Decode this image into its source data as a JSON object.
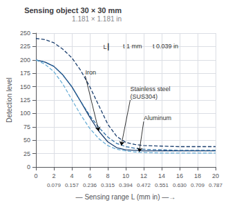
{
  "chart_data": {
    "type": "line",
    "title": "Sensing object 30 × 30 mm",
    "subtitle": "1.181 × 1.181 in",
    "xlabel": "— Sensing range L (mm in) —→",
    "ylabel": "Detection level",
    "x": [
      0,
      1,
      2,
      3,
      4,
      5,
      6,
      7,
      8,
      9,
      10,
      11,
      12,
      14,
      16,
      18,
      20
    ],
    "xlim": [
      0,
      20
    ],
    "xticks": [
      0,
      2,
      4,
      6,
      8,
      10,
      12,
      14,
      16,
      18,
      20
    ],
    "x2lim": [
      0,
      20
    ],
    "x2ticks": [
      {
        "value": 2,
        "label": "0.079"
      },
      {
        "value": 4,
        "label": "0.157"
      },
      {
        "value": 6,
        "label": "0.236"
      },
      {
        "value": 8,
        "label": "0.315"
      },
      {
        "value": 10,
        "label": "0.394"
      },
      {
        "value": 12,
        "label": "0.472"
      },
      {
        "value": 14,
        "label": "0.551"
      },
      {
        "value": 16,
        "label": "0.630"
      },
      {
        "value": 18,
        "label": "0.709"
      },
      {
        "value": 20,
        "label": "0.787"
      }
    ],
    "ylim": [
      0,
      250
    ],
    "yticks": [
      0,
      25,
      50,
      75,
      100,
      125,
      150,
      175,
      200,
      225,
      250
    ],
    "grid": true,
    "series": [
      {
        "color": "#1a3e6e",
        "line_style": "solid",
        "values": [
          200,
          196,
          188,
          172,
          150,
          122,
          93,
          67,
          47,
          36,
          32,
          31,
          30,
          30,
          30,
          30,
          30
        ]
      },
      {
        "color": "#1a3e6e",
        "line_style": "dashed",
        "values": [
          240,
          238,
          232,
          220,
          204,
          180,
          150,
          115,
          80,
          57,
          46,
          42,
          40,
          39,
          38,
          38,
          38
        ]
      },
      {
        "color": "#2e6da4",
        "line_style": "dashed",
        "values": [
          200,
          196,
          188,
          172,
          150,
          122,
          96,
          74,
          56,
          44,
          38,
          35,
          33,
          32,
          31,
          31,
          31
        ]
      },
      {
        "color": "#6aaed6",
        "line_style": "dashed",
        "values": [
          200,
          192,
          178,
          155,
          126,
          97,
          72,
          53,
          40,
          33,
          30,
          28,
          27,
          26,
          26,
          26,
          26
        ]
      }
    ],
    "annotations": [
      {
        "text": "L┃",
        "x": 7.5,
        "y": 224
      },
      {
        "text": "t 1 mm ",
        "x": 9.7,
        "y": 226
      },
      {
        "text": "t 0.039 in",
        "x": 13.0,
        "y": 226
      },
      {
        "text": "Iron",
        "x": 5.5,
        "y": 170,
        "arrow_to": [
          7.0,
          67
        ]
      },
      {
        "text": "Stainless steel\n(SUS304)",
        "x": 10.5,
        "y": 125,
        "arrow_to": [
          9.5,
          40
        ]
      },
      {
        "text": "Aluminum",
        "x": 12.0,
        "y": 85,
        "arrow_to": [
          11.5,
          28
        ]
      }
    ]
  }
}
